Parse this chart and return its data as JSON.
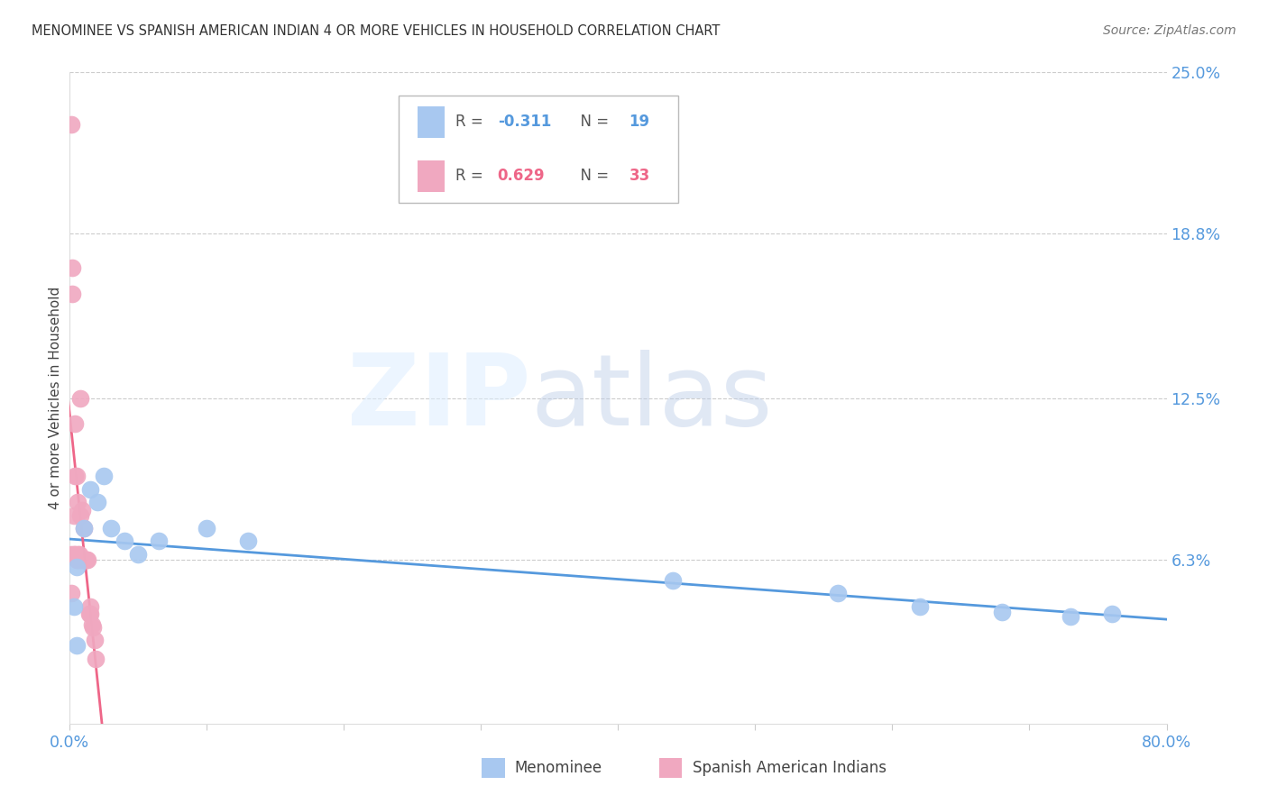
{
  "title": "MENOMINEE VS SPANISH AMERICAN INDIAN 4 OR MORE VEHICLES IN HOUSEHOLD CORRELATION CHART",
  "source": "Source: ZipAtlas.com",
  "ylabel": "4 or more Vehicles in Household",
  "xlim": [
    0.0,
    0.8
  ],
  "ylim": [
    0.0,
    0.25
  ],
  "ytick_vals": [
    0.063,
    0.125,
    0.188,
    0.25
  ],
  "ytick_labels": [
    "6.3%",
    "12.5%",
    "18.8%",
    "25.0%"
  ],
  "xtick_positions": [
    0.0,
    0.1,
    0.2,
    0.3,
    0.4,
    0.5,
    0.6,
    0.7,
    0.8
  ],
  "xtick_labels": [
    "0.0%",
    "",
    "",
    "",
    "",
    "",
    "",
    "",
    "80.0%"
  ],
  "legend_label1": "Menominee",
  "legend_label2": "Spanish American Indians",
  "R1": -0.311,
  "N1": 19,
  "R2": 0.629,
  "N2": 33,
  "color1": "#a8c8f0",
  "color2": "#f0a8c0",
  "line_color1": "#5599dd",
  "line_color2": "#ee6688",
  "grid_color": "#cccccc",
  "spine_color": "#dddddd",
  "tick_color": "#5599dd",
  "title_color": "#333333",
  "watermark_zip_color": "#ddeeff",
  "watermark_atlas_color": "#c8ddf0",
  "menominee_x": [
    0.003,
    0.005,
    0.01,
    0.015,
    0.02,
    0.025,
    0.03,
    0.04,
    0.05,
    0.065,
    0.1,
    0.13,
    0.44,
    0.56,
    0.62,
    0.68,
    0.73,
    0.76,
    0.005
  ],
  "menominee_y": [
    0.045,
    0.06,
    0.075,
    0.09,
    0.085,
    0.095,
    0.075,
    0.07,
    0.065,
    0.07,
    0.075,
    0.07,
    0.055,
    0.05,
    0.045,
    0.043,
    0.041,
    0.042,
    0.03
  ],
  "spanish_x": [
    0.001,
    0.001,
    0.001,
    0.002,
    0.002,
    0.003,
    0.003,
    0.004,
    0.004,
    0.004,
    0.005,
    0.005,
    0.006,
    0.006,
    0.006,
    0.007,
    0.007,
    0.008,
    0.008,
    0.009,
    0.009,
    0.01,
    0.01,
    0.011,
    0.012,
    0.013,
    0.014,
    0.015,
    0.015,
    0.016,
    0.017,
    0.018,
    0.019
  ],
  "spanish_y": [
    0.23,
    0.065,
    0.05,
    0.175,
    0.165,
    0.08,
    0.065,
    0.115,
    0.095,
    0.065,
    0.095,
    0.063,
    0.085,
    0.065,
    0.063,
    0.065,
    0.063,
    0.125,
    0.08,
    0.082,
    0.063,
    0.075,
    0.063,
    0.063,
    0.063,
    0.063,
    0.042,
    0.045,
    0.042,
    0.038,
    0.037,
    0.032,
    0.025
  ]
}
